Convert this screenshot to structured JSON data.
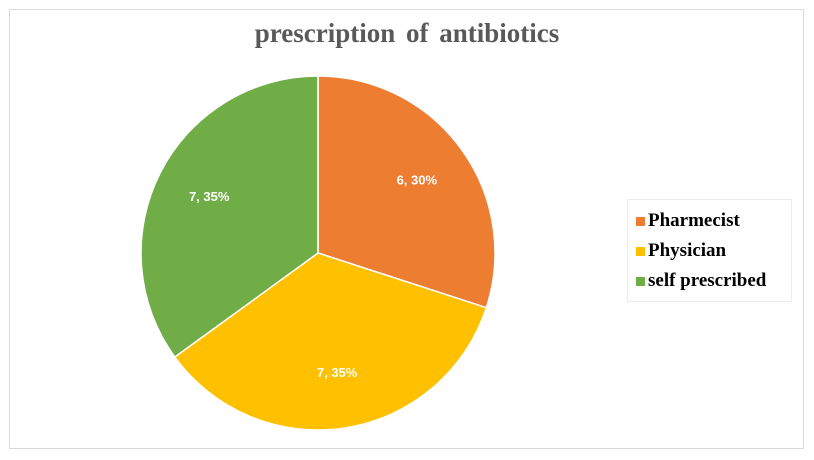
{
  "chart_data": {
    "type": "pie",
    "title": "prescription  of antibiotics",
    "categories": [
      "Pharmecist",
      "Physician",
      "self prescribed"
    ],
    "values": [
      6,
      7,
      7
    ],
    "percentages": [
      "30%",
      "35%",
      "35%"
    ],
    "data_labels": [
      "6, 30%",
      "7, 35%",
      "7, 35%"
    ],
    "colors": [
      "#ed7d31",
      "#ffc000",
      "#70ad47"
    ],
    "legend_position": "right"
  }
}
